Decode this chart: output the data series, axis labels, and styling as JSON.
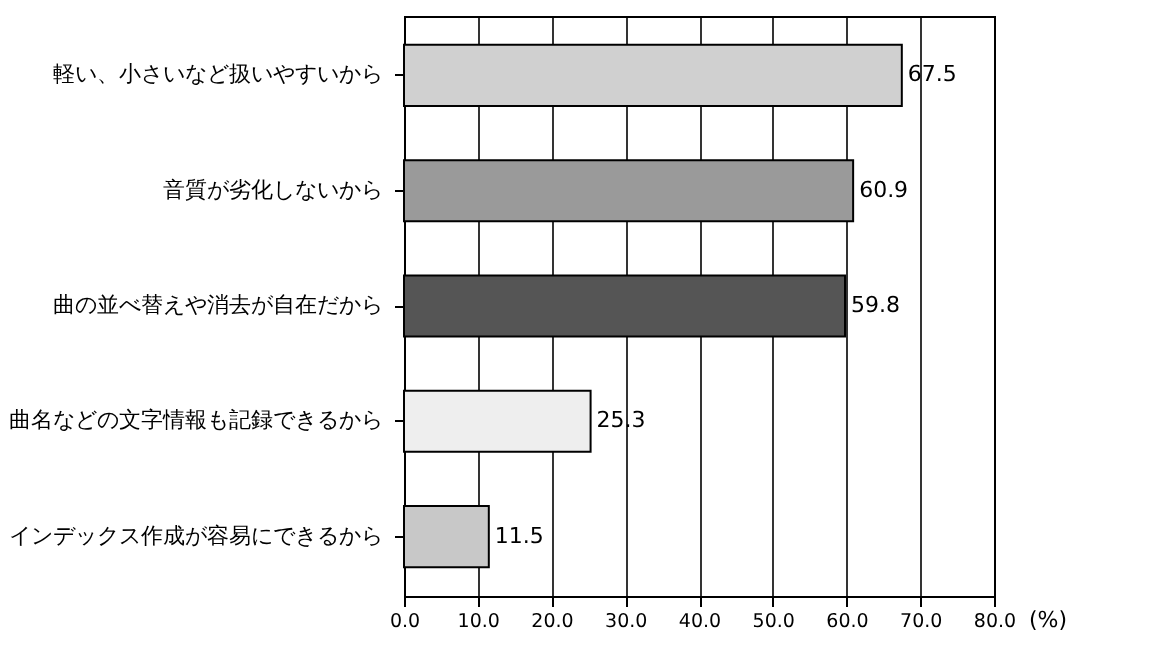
{
  "chart_data": {
    "type": "bar",
    "orientation": "horizontal",
    "xlabel": "(%)",
    "categories": [
      "軽い、小さいなど扱いやすいから",
      "音質が劣化しないから",
      "曲の並べ替えや消去が自在だから",
      "曲名などの文字情報も記録できるから",
      "インデックス作成が容易にできるから"
    ],
    "values": [
      67.5,
      60.9,
      59.8,
      25.3,
      11.5
    ],
    "colors": [
      "#d0d0d0",
      "#9a9a9a",
      "#555555",
      "#eeeeee",
      "#c8c8c8"
    ],
    "data_labels": true,
    "grid": "x",
    "xlim": [
      0,
      80
    ],
    "xticks": [
      {
        "value": 0,
        "label": "0.0"
      },
      {
        "value": 10,
        "label": "10.0"
      },
      {
        "value": 20,
        "label": "20.0"
      },
      {
        "value": 30,
        "label": "30.0"
      },
      {
        "value": 40,
        "label": "40.0"
      },
      {
        "value": 50,
        "label": "50.0"
      },
      {
        "value": 60,
        "label": "60.0"
      },
      {
        "value": 70,
        "label": "70.0"
      },
      {
        "value": 80,
        "label": "80.0"
      }
    ]
  }
}
